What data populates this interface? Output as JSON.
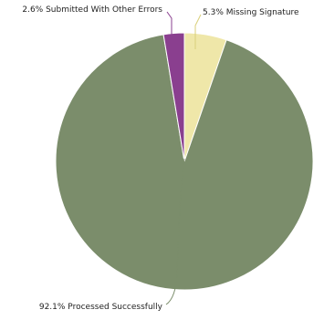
{
  "chart_data": {
    "type": "pie",
    "title": "",
    "start_angle_deg": 0,
    "direction": "clockwise",
    "slices": [
      {
        "label": "5.3% Missing Signature",
        "value": 5.3,
        "color": "#efe7a9",
        "leader_color": "#d9cf7a"
      },
      {
        "label": "92.1% Processed Successfully",
        "value": 92.1,
        "color": "#7b8d6b",
        "leader_color": "#7b8d6b"
      },
      {
        "label": "2.6% Submitted With Other Errors",
        "value": 2.6,
        "color": "#8a3f8f",
        "leader_color": "#8a3f8f"
      }
    ]
  }
}
